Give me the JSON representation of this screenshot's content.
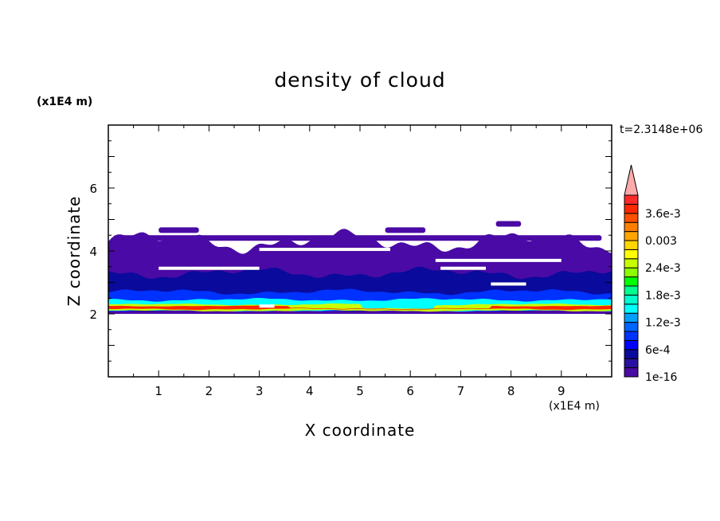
{
  "chart_data": {
    "type": "heatmap",
    "subtype": "filled-contour",
    "title": "density of cloud",
    "xlabel": "X coordinate",
    "ylabel": "Z coordinate",
    "x_unit": "(x1E4 m)",
    "y_unit": "(x1E4 m)",
    "time_label": "t=2.3148e+06",
    "xlim": [
      0,
      10
    ],
    "ylim": [
      0,
      8
    ],
    "x_ticks": [
      "1",
      "2",
      "3",
      "4",
      "5",
      "6",
      "7",
      "8",
      "9"
    ],
    "y_ticks": [
      "2",
      "4",
      "6"
    ],
    "colorbar": {
      "levels_min": 1e-16,
      "level_step": 0.0002,
      "level_count": 20,
      "overflow_arrow": true,
      "tick_labels": [
        "1e-16",
        "6e-4",
        "1.2e-3",
        "1.8e-3",
        "2.4e-3",
        "0.003",
        "3.6e-3"
      ],
      "colors": [
        "#4a0aa5",
        "#2a10a0",
        "#0a0a9c",
        "#0000ff",
        "#0032ff",
        "#0064ff",
        "#00a0ff",
        "#00ffff",
        "#00ffcc",
        "#00ff8c",
        "#00ff00",
        "#8cff00",
        "#c8ff00",
        "#ffff00",
        "#ffd700",
        "#ffa500",
        "#ff8000",
        "#ff5000",
        "#ff2800",
        "#ff2a2a"
      ],
      "overflow_color": "#ffaaaa"
    },
    "field_description_bands": [
      {
        "zmin": 2.0,
        "zmax": 4.3,
        "level_index": 0
      },
      {
        "zmin": 2.1,
        "zmax": 3.3,
        "level_index": 2
      },
      {
        "zmin": 2.1,
        "zmax": 2.7,
        "level_index": 4
      },
      {
        "zmin": 2.1,
        "zmax": 2.45,
        "level_index": 7
      },
      {
        "zmin": 2.1,
        "zmax": 2.3,
        "level_index": 12
      },
      {
        "zmin": 2.15,
        "zmax": 2.25,
        "level_index": 18
      }
    ]
  }
}
